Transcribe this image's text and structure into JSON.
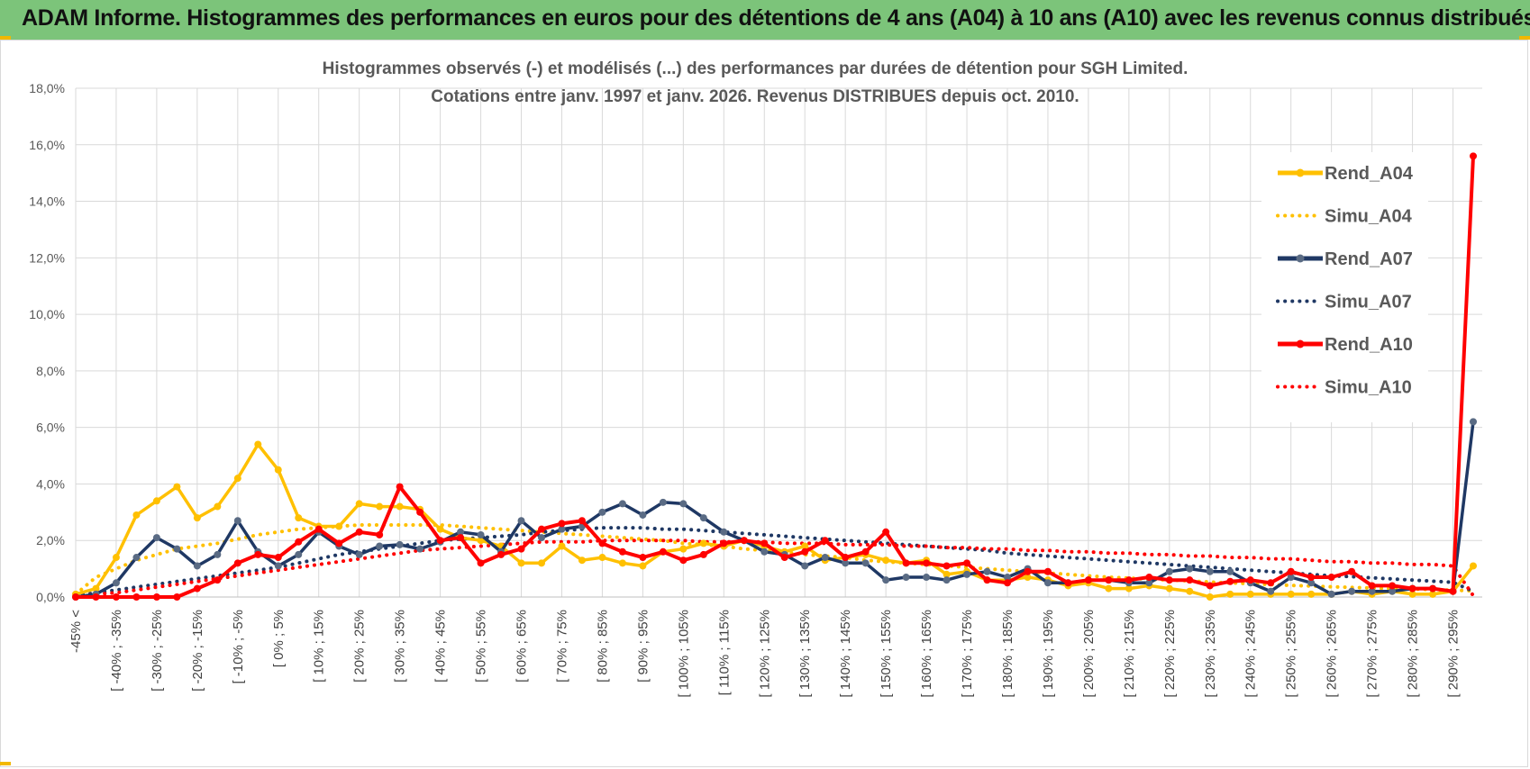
{
  "banner": {
    "title": "ADAM Informe. Histogrammes des performances en euros pour des détentions de 4 ans (A04) à 10 ans (A10) avec les revenus connus distribués"
  },
  "colors": {
    "banner_bg": "#7CC47A",
    "A04": "#FFC000",
    "A07": "#1F3864",
    "A07_marker": "#5A6B84",
    "A10": "#FF0000",
    "grid": "#D9D9D9"
  },
  "chart_data": {
    "type": "line",
    "title": "Histogrammes observés (-) et modélisés (...) des performances par durées de détention pour SGH Limited.",
    "subtitle": "Cotations entre janv. 1997 et janv. 2026. Revenus DISTRIBUES depuis oct. 2010.",
    "xlabel": "",
    "ylabel": "",
    "ylim": [
      0,
      18
    ],
    "yticks": [
      "0,0%",
      "2,0%",
      "4,0%",
      "6,0%",
      "8,0%",
      "10,0%",
      "12,0%",
      "14,0%",
      "16,0%",
      "18,0%"
    ],
    "grid": true,
    "legend_position": "right",
    "x_tick_labels": [
      "-45% <",
      "[ -40% ; -35%",
      "[ -30% ; -25%",
      "[ -20% ; -15%",
      "[ -10% ; -5%",
      "[ 0% ; 5%",
      "[ 10% ; 15%",
      "[ 20% ; 25%",
      "[ 30% ; 35%",
      "[ 40% ; 45%",
      "[ 50% ; 55%",
      "[ 60% ; 65%",
      "[ 70% ; 75%",
      "[ 80% ; 85%",
      "[ 90% ; 95%",
      "[ 100% ; 105%",
      "[ 110% ; 115%",
      "[ 120% ; 125%",
      "[ 130% ; 135%",
      "[ 140% ; 145%",
      "[ 150% ; 155%",
      "[ 160% ; 165%",
      "[ 170% ; 175%",
      "[ 180% ; 185%",
      "[ 190% ; 195%",
      "[ 200% ; 205%",
      "[ 210% ; 215%",
      "[ 220% ; 225%",
      "[ 230% ; 235%",
      "[ 240% ; 245%",
      "[ 250% ; 255%",
      "[ 260% ; 265%",
      "[ 270% ; 275%",
      "[ 280% ; 285%",
      "[ 290% ; 295%"
    ],
    "n_points": 70,
    "series": [
      {
        "name": "Rend_A04",
        "style": "solid",
        "values": [
          0.1,
          0.3,
          1.4,
          2.9,
          3.4,
          3.9,
          2.8,
          3.2,
          4.2,
          5.4,
          4.5,
          2.8,
          2.5,
          2.5,
          3.3,
          3.2,
          3.2,
          3.1,
          2.4,
          2.1,
          2.0,
          1.8,
          1.2,
          1.2,
          1.8,
          1.3,
          1.4,
          1.2,
          1.1,
          1.6,
          1.7,
          1.9,
          1.8,
          2.0,
          1.8,
          1.6,
          1.8,
          1.3,
          1.4,
          1.5,
          1.3,
          1.2,
          1.3,
          0.8,
          0.9,
          0.6,
          0.6,
          0.7,
          0.6,
          0.4,
          0.5,
          0.3,
          0.3,
          0.4,
          0.3,
          0.2,
          0.0,
          0.1,
          0.1,
          0.1,
          0.1,
          0.1,
          0.1,
          0.2,
          0.1,
          0.2,
          0.1,
          0.1,
          0.2,
          1.1
        ]
      },
      {
        "name": "Simu_A04",
        "style": "dotted",
        "values": [
          0.1,
          0.7,
          1.0,
          1.3,
          1.5,
          1.7,
          1.8,
          1.9,
          2.05,
          2.2,
          2.3,
          2.4,
          2.45,
          2.5,
          2.55,
          2.55,
          2.55,
          2.55,
          2.55,
          2.5,
          2.45,
          2.4,
          2.35,
          2.3,
          2.25,
          2.2,
          2.15,
          2.1,
          2.05,
          2.0,
          1.9,
          1.85,
          1.8,
          1.7,
          1.65,
          1.6,
          1.5,
          1.45,
          1.4,
          1.3,
          1.25,
          1.2,
          1.15,
          1.1,
          1.05,
          1.0,
          0.95,
          0.9,
          0.85,
          0.8,
          0.75,
          0.7,
          0.67,
          0.63,
          0.6,
          0.57,
          0.53,
          0.5,
          0.47,
          0.44,
          0.41,
          0.39,
          0.36,
          0.34,
          0.32,
          0.3,
          0.28,
          0.26,
          0.24,
          0.22
        ]
      },
      {
        "name": "Rend_A07",
        "style": "solid",
        "values": [
          0.0,
          0.1,
          0.5,
          1.4,
          2.1,
          1.7,
          1.1,
          1.5,
          2.7,
          1.6,
          1.1,
          1.5,
          2.3,
          1.8,
          1.5,
          1.8,
          1.85,
          1.7,
          1.95,
          2.3,
          2.2,
          1.6,
          2.7,
          2.1,
          2.4,
          2.5,
          3.0,
          3.3,
          2.9,
          3.35,
          3.3,
          2.8,
          2.3,
          2.0,
          1.6,
          1.5,
          1.1,
          1.4,
          1.2,
          1.2,
          0.6,
          0.7,
          0.7,
          0.6,
          0.8,
          0.9,
          0.7,
          1.0,
          0.5,
          0.5,
          0.6,
          0.6,
          0.5,
          0.5,
          0.9,
          1.0,
          0.9,
          0.9,
          0.5,
          0.2,
          0.7,
          0.5,
          0.1,
          0.2,
          0.2,
          0.2,
          0.3,
          0.3,
          0.2,
          6.2
        ]
      },
      {
        "name": "Simu_A07",
        "style": "dotted",
        "values": [
          0.05,
          0.15,
          0.25,
          0.35,
          0.45,
          0.55,
          0.65,
          0.75,
          0.85,
          0.95,
          1.05,
          1.2,
          1.35,
          1.5,
          1.6,
          1.7,
          1.8,
          1.9,
          2.0,
          2.05,
          2.1,
          2.15,
          2.2,
          2.3,
          2.35,
          2.4,
          2.45,
          2.45,
          2.45,
          2.4,
          2.4,
          2.35,
          2.3,
          2.25,
          2.2,
          2.15,
          2.1,
          2.05,
          2.0,
          1.95,
          1.9,
          1.85,
          1.8,
          1.75,
          1.7,
          1.65,
          1.55,
          1.5,
          1.45,
          1.4,
          1.35,
          1.3,
          1.25,
          1.2,
          1.15,
          1.1,
          1.05,
          1.0,
          0.95,
          0.9,
          0.85,
          0.8,
          0.75,
          0.72,
          0.68,
          0.64,
          0.6,
          0.56,
          0.52,
          0.2
        ]
      },
      {
        "name": "Rend_A10",
        "style": "solid",
        "values": [
          0.0,
          0.0,
          0.0,
          0.0,
          0.0,
          0.0,
          0.3,
          0.6,
          1.2,
          1.5,
          1.4,
          1.95,
          2.4,
          1.9,
          2.3,
          2.2,
          3.9,
          3.0,
          2.0,
          2.1,
          1.2,
          1.5,
          1.7,
          2.4,
          2.6,
          2.7,
          1.9,
          1.6,
          1.4,
          1.6,
          1.3,
          1.5,
          1.9,
          2.0,
          1.9,
          1.4,
          1.6,
          2.0,
          1.4,
          1.6,
          2.3,
          1.2,
          1.2,
          1.1,
          1.2,
          0.6,
          0.5,
          0.9,
          0.9,
          0.5,
          0.6,
          0.6,
          0.6,
          0.7,
          0.6,
          0.6,
          0.4,
          0.55,
          0.6,
          0.5,
          0.9,
          0.7,
          0.7,
          0.9,
          0.4,
          0.4,
          0.3,
          0.3,
          0.2,
          15.6
        ]
      },
      {
        "name": "Simu_A10",
        "style": "dotted",
        "values": [
          0.0,
          0.1,
          0.15,
          0.25,
          0.35,
          0.45,
          0.55,
          0.65,
          0.75,
          0.85,
          0.95,
          1.05,
          1.15,
          1.25,
          1.35,
          1.45,
          1.55,
          1.65,
          1.7,
          1.75,
          1.8,
          1.85,
          1.9,
          1.95,
          1.95,
          1.95,
          2.0,
          2.0,
          2.0,
          2.0,
          2.0,
          1.95,
          1.95,
          1.95,
          1.95,
          1.9,
          1.9,
          1.9,
          1.85,
          1.85,
          1.85,
          1.8,
          1.8,
          1.75,
          1.75,
          1.7,
          1.7,
          1.65,
          1.65,
          1.6,
          1.6,
          1.55,
          1.55,
          1.5,
          1.5,
          1.45,
          1.45,
          1.4,
          1.4,
          1.35,
          1.35,
          1.3,
          1.25,
          1.25,
          1.2,
          1.2,
          1.15,
          1.15,
          1.1,
          0.05
        ]
      }
    ]
  }
}
